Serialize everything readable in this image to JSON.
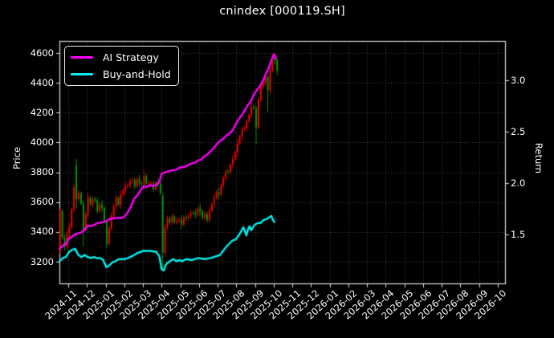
{
  "figure": {
    "title": "cnindex [000119.SH]",
    "background_color": "#000000",
    "text_color": "#ffffff",
    "grid_color": "#4a4a4a",
    "spine_color": "#dcdcdc"
  },
  "legend": {
    "items": [
      {
        "label": "AI Strategy",
        "color": "#ff00ff"
      },
      {
        "label": "Buy-and-Hold",
        "color": "#00f0f0"
      }
    ]
  },
  "chart_data": {
    "type": "candlestick+line",
    "title": "cnindex [000119.SH]",
    "xlabel": "",
    "ylabel_left": "Price",
    "ylabel_right": "Return",
    "grid": "dotted",
    "legend_position": "upper left",
    "x_tick_labels": [
      "2024-11",
      "2024-12",
      "2025-01",
      "2025-02",
      "2025-03",
      "2025-04",
      "2025-05",
      "2025-06",
      "2025-07",
      "2025-08",
      "2025-09",
      "2025-10",
      "2025-11",
      "2025-12",
      "2026-01",
      "2026-02",
      "2026-03",
      "2026-04",
      "2026-05",
      "2026-06",
      "2026-07",
      "2026-08",
      "2026-09",
      "2026-10"
    ],
    "y_ticks_left": [
      4600,
      4400,
      4200,
      4000,
      3800,
      3600,
      3400,
      3200
    ],
    "y_ticks_right": [
      "3.0",
      "2.5",
      "2.0",
      "1.5"
    ],
    "ylim_left": [
      3055,
      4681
    ],
    "ylim_right": [
      1.02,
      3.38
    ],
    "candle_up_color": "#ff0000",
    "candle_down_color": "#00a000",
    "candles_note": "x in months since 2024-11 tick; OHLC in Price units; up days red (CN convention)",
    "candle_start_month": -0.44,
    "candle_step_month": 0.125,
    "candles_ohlc": [
      [
        3270,
        3558,
        3252,
        3540
      ],
      [
        3540,
        3550,
        3350,
        3360
      ],
      [
        3360,
        3385,
        3275,
        3300
      ],
      [
        3300,
        3404,
        3286,
        3390
      ],
      [
        3390,
        3460,
        3360,
        3430
      ],
      [
        3430,
        3562,
        3418,
        3550
      ],
      [
        3550,
        3720,
        3530,
        3700
      ],
      [
        3845,
        3890,
        3560,
        3620
      ],
      [
        3620,
        3678,
        3602,
        3660
      ],
      [
        3660,
        3670,
        3580,
        3590
      ],
      [
        3590,
        3615,
        3300,
        3420
      ],
      [
        3420,
        3534,
        3406,
        3520
      ],
      [
        3520,
        3660,
        3490,
        3630
      ],
      [
        3630,
        3642,
        3570,
        3582
      ],
      [
        3582,
        3640,
        3562,
        3620
      ],
      [
        3620,
        3636,
        3596,
        3612
      ],
      [
        3612,
        3630,
        3522,
        3540
      ],
      [
        3540,
        3595,
        3530,
        3585
      ],
      [
        3585,
        3610,
        3535,
        3560
      ],
      [
        3560,
        3574,
        3456,
        3470
      ],
      [
        3470,
        3480,
        3290,
        3320
      ],
      [
        3320,
        3437,
        3308,
        3425
      ],
      [
        3425,
        3530,
        3405,
        3510
      ],
      [
        3510,
        3586,
        3494,
        3570
      ],
      [
        3570,
        3648,
        3552,
        3630
      ],
      [
        3630,
        3640,
        3572,
        3582
      ],
      [
        3582,
        3675,
        3557,
        3650
      ],
      [
        3650,
        3691,
        3636,
        3677
      ],
      [
        3677,
        3735,
        3647,
        3705
      ],
      [
        3705,
        3724,
        3693,
        3712
      ],
      [
        3712,
        3760,
        3692,
        3740
      ],
      [
        3740,
        3763,
        3724,
        3747
      ],
      [
        3747,
        3765,
        3687,
        3705
      ],
      [
        3705,
        3767,
        3695,
        3757
      ],
      [
        3757,
        3782,
        3700,
        3725
      ],
      [
        3725,
        3739,
        3708,
        3722
      ],
      [
        3722,
        3805,
        3692,
        3775
      ],
      [
        3775,
        3787,
        3713,
        3725
      ],
      [
        3725,
        3745,
        3705,
        3725
      ],
      [
        3725,
        3743,
        3711,
        3727
      ],
      [
        3727,
        3745,
        3667,
        3685
      ],
      [
        3685,
        3745,
        3675,
        3735
      ],
      [
        3735,
        3760,
        3700,
        3725
      ],
      [
        3725,
        3739,
        3646,
        3660
      ],
      [
        3640,
        3665,
        3145,
        3260
      ],
      [
        3260,
        3450,
        3240,
        3430
      ],
      [
        3430,
        3510,
        3410,
        3490
      ],
      [
        3490,
        3506,
        3449,
        3465
      ],
      [
        3465,
        3523,
        3447,
        3505
      ],
      [
        3505,
        3515,
        3455,
        3465
      ],
      [
        3465,
        3500,
        3450,
        3475
      ],
      [
        3475,
        3496,
        3461,
        3482
      ],
      [
        3482,
        3512,
        3420,
        3450
      ],
      [
        3450,
        3509,
        3438,
        3497
      ],
      [
        3497,
        3517,
        3470,
        3490
      ],
      [
        3490,
        3523,
        3474,
        3507
      ],
      [
        3507,
        3548,
        3489,
        3530
      ],
      [
        3530,
        3540,
        3515,
        3525
      ],
      [
        3525,
        3550,
        3490,
        3515
      ],
      [
        3515,
        3571,
        3501,
        3557
      ],
      [
        3557,
        3587,
        3510,
        3540
      ],
      [
        3540,
        3552,
        3483,
        3495
      ],
      [
        3495,
        3540,
        3475,
        3520
      ],
      [
        3520,
        3536,
        3464,
        3480
      ],
      [
        3480,
        3558,
        3462,
        3540
      ],
      [
        3540,
        3595,
        3530,
        3585
      ],
      [
        3585,
        3655,
        3560,
        3630
      ],
      [
        3630,
        3681,
        3616,
        3667
      ],
      [
        3667,
        3697,
        3620,
        3650
      ],
      [
        3650,
        3727,
        3638,
        3715
      ],
      [
        3715,
        3780,
        3695,
        3760
      ],
      [
        3760,
        3821,
        3744,
        3805
      ],
      [
        3805,
        3823,
        3782,
        3800
      ],
      [
        3800,
        3860,
        3790,
        3850
      ],
      [
        3850,
        3915,
        3825,
        3890
      ],
      [
        3890,
        3949,
        3876,
        3935
      ],
      [
        3935,
        4020,
        3905,
        3990
      ],
      [
        3990,
        4052,
        3978,
        4040
      ],
      [
        4040,
        4110,
        4020,
        4090
      ],
      [
        4090,
        4111,
        4074,
        4095
      ],
      [
        4095,
        4158,
        4077,
        4140
      ],
      [
        4140,
        4195,
        4130,
        4185
      ],
      [
        4185,
        4265,
        4160,
        4240
      ],
      [
        4240,
        4254,
        4216,
        4230
      ],
      [
        4230,
        4245,
        3990,
        4100
      ],
      [
        4100,
        4297,
        4088,
        4285
      ],
      [
        4285,
        4390,
        4265,
        4370
      ],
      [
        4370,
        4416,
        4354,
        4400
      ],
      [
        4400,
        4458,
        4382,
        4440
      ],
      [
        4440,
        4450,
        4205,
        4350
      ],
      [
        4350,
        4505,
        4325,
        4480
      ],
      [
        4480,
        4600,
        4470,
        4565
      ],
      [
        4565,
        4595,
        4520,
        4550
      ],
      [
        4550,
        4570,
        4450,
        4480
      ]
    ],
    "series": [
      {
        "name": "AI Strategy",
        "axis": "right",
        "color": "#ff00ff",
        "points": [
          [
            -0.46,
            1.36
          ],
          [
            -0.29,
            1.39
          ],
          [
            -0.125,
            1.41
          ],
          [
            0.04,
            1.46
          ],
          [
            0.21,
            1.48
          ],
          [
            0.375,
            1.5
          ],
          [
            0.54,
            1.51
          ],
          [
            0.71,
            1.52
          ],
          [
            0.875,
            1.55
          ],
          [
            1.04,
            1.58
          ],
          [
            1.375,
            1.59
          ],
          [
            1.54,
            1.61
          ],
          [
            1.875,
            1.62
          ],
          [
            2.04,
            1.63
          ],
          [
            2.21,
            1.65
          ],
          [
            2.54,
            1.66
          ],
          [
            2.875,
            1.66
          ],
          [
            3.04,
            1.68
          ],
          [
            3.21,
            1.72
          ],
          [
            3.375,
            1.78
          ],
          [
            3.54,
            1.85
          ],
          [
            3.71,
            1.88
          ],
          [
            3.875,
            1.93
          ],
          [
            4.04,
            1.97
          ],
          [
            4.21,
            1.96
          ],
          [
            4.375,
            1.98
          ],
          [
            4.54,
            1.97
          ],
          [
            4.71,
            1.98
          ],
          [
            4.875,
            2.01
          ],
          [
            5.0,
            2.09
          ],
          [
            5.125,
            2.1
          ],
          [
            5.46,
            2.12
          ],
          [
            5.79,
            2.13
          ],
          [
            5.96,
            2.15
          ],
          [
            6.29,
            2.16
          ],
          [
            6.46,
            2.18
          ],
          [
            6.79,
            2.2
          ],
          [
            6.96,
            2.22
          ],
          [
            7.125,
            2.23
          ],
          [
            7.29,
            2.26
          ],
          [
            7.46,
            2.28
          ],
          [
            7.625,
            2.31
          ],
          [
            7.79,
            2.34
          ],
          [
            7.96,
            2.38
          ],
          [
            8.125,
            2.41
          ],
          [
            8.29,
            2.43
          ],
          [
            8.46,
            2.46
          ],
          [
            8.625,
            2.48
          ],
          [
            8.79,
            2.51
          ],
          [
            8.96,
            2.57
          ],
          [
            9.125,
            2.62
          ],
          [
            9.29,
            2.66
          ],
          [
            9.46,
            2.71
          ],
          [
            9.625,
            2.76
          ],
          [
            9.79,
            2.8
          ],
          [
            9.96,
            2.87
          ],
          [
            10.125,
            2.91
          ],
          [
            10.29,
            2.95
          ],
          [
            10.46,
            3.01
          ],
          [
            10.625,
            3.08
          ],
          [
            10.71,
            3.11
          ],
          [
            10.79,
            3.15
          ],
          [
            10.875,
            3.19
          ],
          [
            10.96,
            3.23
          ],
          [
            11.04,
            3.25
          ],
          [
            11.125,
            3.21
          ]
        ]
      },
      {
        "name": "Buy-and-Hold",
        "axis": "right",
        "color": "#00f0f0",
        "points": [
          [
            -0.46,
            1.24
          ],
          [
            -0.29,
            1.27
          ],
          [
            -0.125,
            1.28
          ],
          [
            0.04,
            1.33
          ],
          [
            0.21,
            1.35
          ],
          [
            0.375,
            1.36
          ],
          [
            0.54,
            1.3
          ],
          [
            0.71,
            1.28
          ],
          [
            0.875,
            1.3
          ],
          [
            1.04,
            1.28
          ],
          [
            1.21,
            1.27
          ],
          [
            1.375,
            1.28
          ],
          [
            1.54,
            1.27
          ],
          [
            1.71,
            1.27
          ],
          [
            1.875,
            1.25
          ],
          [
            2.04,
            1.18
          ],
          [
            2.21,
            1.2
          ],
          [
            2.375,
            1.23
          ],
          [
            2.54,
            1.24
          ],
          [
            2.71,
            1.26
          ],
          [
            3.04,
            1.26
          ],
          [
            3.21,
            1.27
          ],
          [
            3.54,
            1.3
          ],
          [
            3.71,
            1.32
          ],
          [
            3.875,
            1.33
          ],
          [
            4.04,
            1.34
          ],
          [
            4.375,
            1.34
          ],
          [
            4.71,
            1.33
          ],
          [
            4.875,
            1.29
          ],
          [
            5.0,
            1.16
          ],
          [
            5.125,
            1.15
          ],
          [
            5.21,
            1.2
          ],
          [
            5.29,
            1.22
          ],
          [
            5.46,
            1.24
          ],
          [
            5.625,
            1.26
          ],
          [
            5.79,
            1.24
          ],
          [
            5.96,
            1.25
          ],
          [
            6.125,
            1.24
          ],
          [
            6.29,
            1.26
          ],
          [
            6.625,
            1.25
          ],
          [
            6.79,
            1.26
          ],
          [
            6.96,
            1.27
          ],
          [
            7.29,
            1.26
          ],
          [
            7.625,
            1.27
          ],
          [
            7.96,
            1.29
          ],
          [
            8.125,
            1.3
          ],
          [
            8.29,
            1.34
          ],
          [
            8.46,
            1.38
          ],
          [
            8.625,
            1.41
          ],
          [
            8.79,
            1.44
          ],
          [
            8.96,
            1.45
          ],
          [
            9.125,
            1.49
          ],
          [
            9.29,
            1.54
          ],
          [
            9.375,
            1.57
          ],
          [
            9.46,
            1.53
          ],
          [
            9.54,
            1.49
          ],
          [
            9.625,
            1.55
          ],
          [
            9.71,
            1.58
          ],
          [
            9.79,
            1.54
          ],
          [
            9.875,
            1.56
          ],
          [
            9.96,
            1.59
          ],
          [
            10.125,
            1.61
          ],
          [
            10.29,
            1.61
          ],
          [
            10.46,
            1.64
          ],
          [
            10.625,
            1.65
          ],
          [
            10.79,
            1.67
          ],
          [
            10.875,
            1.68
          ],
          [
            10.96,
            1.64
          ],
          [
            11.04,
            1.62
          ]
        ]
      }
    ]
  }
}
